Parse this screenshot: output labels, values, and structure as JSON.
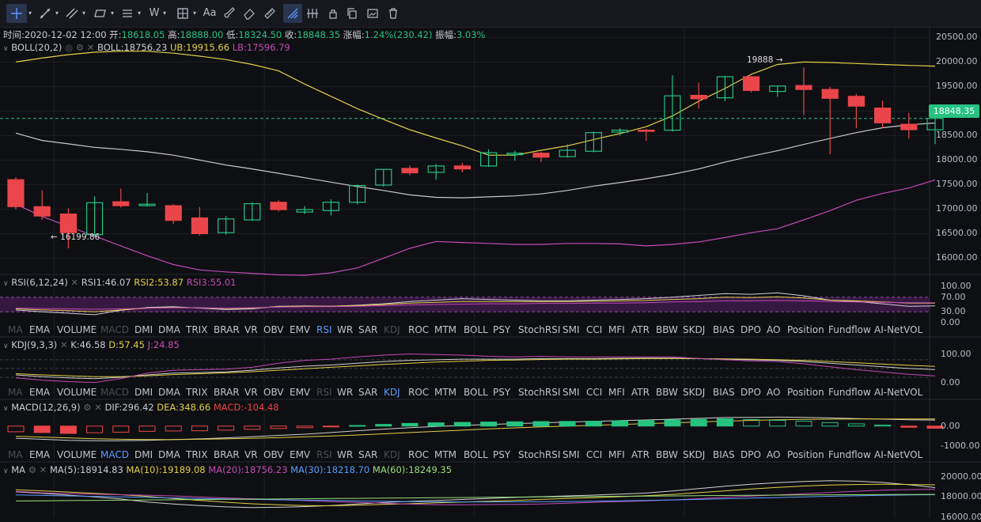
{
  "toolbar": {
    "icons": [
      "crosshair-icon",
      "trendline-icon",
      "multi-line-icon",
      "rectangle-icon",
      "horizontal-lines-icon",
      "pattern-w-icon",
      "measure-icon",
      "text-icon",
      "brush-icon",
      "eraser-icon",
      "ruler-icon",
      "magnet-icon",
      "grid-icon",
      "lock-icon",
      "copy-icon",
      "screenshot-icon",
      "trash-icon"
    ],
    "pattern_label": "W",
    "text_label": "Aa"
  },
  "info": {
    "time_label": "时间:",
    "time": "2020-12-02 12:00",
    "open_label": "开:",
    "open": "18618.05",
    "high_label": "高:",
    "high": "18888.00",
    "low_label": "低:",
    "low": "18324.50",
    "close_label": "收:",
    "close": "18848.35",
    "change_label": "涨幅:",
    "change": "1.24%(230.42)",
    "amp_label": "振幅:",
    "amp": "3.03%"
  },
  "boll": {
    "name": "BOLL(20,2)",
    "mid_label": "BOLL:",
    "mid": "18756.23",
    "ub_label": "UB:",
    "ub": "19915.66",
    "lb_label": "LB:",
    "lb": "17596.79"
  },
  "price_axis": [
    "20500.00",
    "20000.00",
    "19500.00",
    "19000.00",
    "18500.00",
    "18000.00",
    "17500.00",
    "17000.00",
    "16500.00",
    "16000.00"
  ],
  "last_price": "18848.35",
  "high_marker": "19888 →",
  "low_marker": "← 16199.86",
  "rsi": {
    "name": "RSI(6,12,24)",
    "v1_label": "RSI1:",
    "v1": "46.07",
    "v2_label": "RSI2:",
    "v2": "53.87",
    "v3_label": "RSI3:",
    "v3": "55.01",
    "axis": [
      "100.00",
      "70.00",
      "30.00",
      "0.00"
    ]
  },
  "kdj": {
    "name": "KDJ(9,3,3)",
    "k_label": "K:",
    "k": "46.58",
    "d_label": "D:",
    "d": "57.45",
    "j_label": "J:",
    "j": "24.85",
    "axis": [
      "100.00",
      "0.00"
    ]
  },
  "macd": {
    "name": "MACD(12,26,9)",
    "dif_label": "DIF:",
    "dif": "296.42",
    "dea_label": "DEA:",
    "dea": "348.66",
    "macd_label": "MACD:",
    "macd": "-104.48",
    "axis": [
      "0.00",
      "-1000.00"
    ]
  },
  "ma": {
    "name": "MA",
    "ma5_label": "MA(5):",
    "ma5": "18914.83",
    "ma10_label": "MA(10):",
    "ma10": "19189.08",
    "ma20_label": "MA(20):",
    "ma20": "18756.23",
    "ma30_label": "MA(30):",
    "ma30": "18218.70",
    "ma60_label": "MA(60):",
    "ma60": "18249.35",
    "axis": [
      "20000.00",
      "18000.00",
      "16000.00"
    ]
  },
  "indicator_tabs": [
    "MA",
    "EMA",
    "VOLUME",
    "MACD",
    "DMI",
    "DMA",
    "TRIX",
    "BRAR",
    "VR",
    "OBV",
    "EMV",
    "RSI",
    "WR",
    "SAR",
    "KDJ",
    "ROC",
    "MTM",
    "BOLL",
    "PSY",
    "StochRSI",
    "SMI",
    "CCI",
    "MFI",
    "ATR",
    "BBW",
    "SKDJ",
    "BIAS",
    "DPO",
    "AO",
    "Position",
    "Fundflow",
    "AI-NetVOL"
  ],
  "tab_rows": [
    {
      "active": "RSI",
      "disabled": [
        "MA",
        "MACD",
        "KDJ"
      ]
    },
    {
      "active": "KDJ",
      "disabled": [
        "MA",
        "MACD",
        "RSI"
      ]
    },
    {
      "active": "MACD",
      "disabled": [
        "MA",
        "RSI",
        "KDJ"
      ]
    }
  ],
  "colors": {
    "up": "#26c281",
    "down": "#e9454a",
    "boll_ub": "#e0d04a",
    "boll_mid": "#c8c8c8",
    "boll_lb": "#c24cb4",
    "accent": "#5b9bff",
    "rsi1": "#d0d0d0",
    "rsi2": "#e0d04a",
    "rsi3": "#c24cb4"
  },
  "chart_data": {
    "type": "candlestick",
    "candles": [
      {
        "o": 17600,
        "h": 17650,
        "c": 17050,
        "l": 17000
      },
      {
        "o": 17050,
        "h": 17380,
        "c": 16860,
        "l": 16780
      },
      {
        "o": 16900,
        "h": 17020,
        "c": 16520,
        "l": 16199.86
      },
      {
        "o": 16480,
        "h": 17260,
        "c": 17130,
        "l": 16460
      },
      {
        "o": 17150,
        "h": 17420,
        "c": 17070,
        "l": 17030
      },
      {
        "o": 17070,
        "h": 17330,
        "c": 17100,
        "l": 17050
      },
      {
        "o": 17070,
        "h": 17100,
        "c": 16770,
        "l": 16700
      },
      {
        "o": 16820,
        "h": 17040,
        "c": 16500,
        "l": 16460
      },
      {
        "o": 16520,
        "h": 16860,
        "c": 16800,
        "l": 16480
      },
      {
        "o": 16780,
        "h": 17140,
        "c": 17110,
        "l": 16760
      },
      {
        "o": 17140,
        "h": 17180,
        "c": 16990,
        "l": 16950
      },
      {
        "o": 16940,
        "h": 17060,
        "c": 16990,
        "l": 16900
      },
      {
        "o": 16970,
        "h": 17200,
        "c": 17140,
        "l": 16870
      },
      {
        "o": 17140,
        "h": 17500,
        "c": 17480,
        "l": 17100
      },
      {
        "o": 17490,
        "h": 17820,
        "c": 17810,
        "l": 17460
      },
      {
        "o": 17830,
        "h": 17890,
        "c": 17740,
        "l": 17690
      },
      {
        "o": 17750,
        "h": 17920,
        "c": 17880,
        "l": 17600
      },
      {
        "o": 17880,
        "h": 17940,
        "c": 17820,
        "l": 17750
      },
      {
        "o": 17880,
        "h": 18220,
        "c": 18150,
        "l": 17860
      },
      {
        "o": 18110,
        "h": 18190,
        "c": 18140,
        "l": 17990
      },
      {
        "o": 18140,
        "h": 18170,
        "c": 18060,
        "l": 17960
      },
      {
        "o": 18070,
        "h": 18320,
        "c": 18200,
        "l": 18050
      },
      {
        "o": 18180,
        "h": 18580,
        "c": 18560,
        "l": 18160
      },
      {
        "o": 18570,
        "h": 18650,
        "c": 18610,
        "l": 18500
      },
      {
        "o": 18610,
        "h": 18640,
        "c": 18590,
        "l": 18390
      },
      {
        "o": 18610,
        "h": 19730,
        "c": 19310,
        "l": 18580
      },
      {
        "o": 19320,
        "h": 19580,
        "c": 19250,
        "l": 19050
      },
      {
        "o": 19270,
        "h": 19720,
        "c": 19700,
        "l": 19200
      },
      {
        "o": 19700,
        "h": 19720,
        "c": 19420,
        "l": 19380
      },
      {
        "o": 19400,
        "h": 19520,
        "c": 19510,
        "l": 19290
      },
      {
        "o": 19520,
        "h": 19888,
        "c": 19440,
        "l": 18920
      },
      {
        "o": 19440,
        "h": 19490,
        "c": 19260,
        "l": 18120
      },
      {
        "o": 19300,
        "h": 19350,
        "c": 19100,
        "l": 18650
      },
      {
        "o": 19060,
        "h": 19210,
        "c": 18760,
        "l": 18650
      },
      {
        "o": 18730,
        "h": 18960,
        "c": 18620,
        "l": 18440
      },
      {
        "o": 18618.05,
        "h": 18888,
        "c": 18848.35,
        "l": 18324.5
      }
    ],
    "boll_ub": [
      20000,
      20080,
      20150,
      20200,
      20220,
      20220,
      20180,
      20120,
      20050,
      19950,
      19820,
      19550,
      19300,
      19050,
      18830,
      18620,
      18450,
      18290,
      18100,
      18100,
      18200,
      18290,
      18420,
      18540,
      18680,
      18900,
      19200,
      19460,
      19750,
      19950,
      20000,
      19990,
      19970,
      19950,
      19930,
      19915.66
    ],
    "boll_mid": [
      18550,
      18400,
      18330,
      18260,
      18220,
      18170,
      18100,
      18000,
      17900,
      17820,
      17730,
      17640,
      17550,
      17460,
      17380,
      17290,
      17240,
      17230,
      17250,
      17270,
      17310,
      17380,
      17470,
      17540,
      17620,
      17710,
      17820,
      17960,
      18080,
      18190,
      18320,
      18440,
      18560,
      18660,
      18720,
      18756.23
    ],
    "boll_lb": [
      17100,
      16850,
      16650,
      16450,
      16250,
      16050,
      15870,
      15760,
      15720,
      15690,
      15660,
      15650,
      15700,
      15800,
      16000,
      16200,
      16340,
      16320,
      16300,
      16280,
      16280,
      16300,
      16300,
      16290,
      16250,
      16280,
      16330,
      16420,
      16520,
      16600,
      16780,
      16970,
      17180,
      17320,
      17430,
      17596.79
    ],
    "rsi1": [
      35,
      30,
      26,
      22,
      34,
      42,
      44,
      40,
      36,
      38,
      45,
      46,
      45,
      48,
      52,
      58,
      62,
      66,
      64,
      62,
      60,
      60,
      62,
      64,
      66,
      70,
      75,
      80,
      78,
      82,
      74,
      62,
      58,
      52,
      45,
      46.07
    ],
    "rsi2": [
      38,
      35,
      33,
      30,
      35,
      40,
      42,
      41,
      39,
      40,
      44,
      45,
      45,
      47,
      50,
      54,
      56,
      58,
      58,
      58,
      58,
      58,
      59,
      60,
      61,
      64,
      66,
      70,
      69,
      71,
      68,
      62,
      60,
      57,
      54,
      53.87
    ],
    "rsi3": [
      40,
      39,
      38,
      37,
      38,
      40,
      41,
      41,
      40,
      41,
      43,
      44,
      44,
      45,
      47,
      49,
      50,
      51,
      52,
      52,
      53,
      53,
      54,
      54,
      55,
      57,
      58,
      60,
      60,
      61,
      60,
      58,
      57,
      56,
      55,
      55.01
    ],
    "kdj_k": [
      28,
      22,
      18,
      15,
      20,
      28,
      34,
      36,
      38,
      44,
      52,
      58,
      62,
      68,
      74,
      78,
      80,
      82,
      82,
      82,
      84,
      84,
      84,
      85,
      86,
      86,
      84,
      82,
      80,
      78,
      74,
      68,
      62,
      56,
      50,
      46.58
    ],
    "kdj_d": [
      32,
      28,
      25,
      22,
      22,
      25,
      29,
      32,
      35,
      39,
      44,
      49,
      54,
      59,
      64,
      68,
      72,
      75,
      78,
      79,
      81,
      82,
      82,
      83,
      84,
      84,
      84,
      83,
      82,
      80,
      78,
      74,
      70,
      65,
      61,
      57.45
    ],
    "kdj_j": [
      18,
      10,
      5,
      2,
      15,
      34,
      44,
      46,
      48,
      54,
      68,
      78,
      82,
      90,
      96,
      100,
      98,
      96,
      92,
      90,
      92,
      90,
      90,
      90,
      90,
      90,
      84,
      80,
      76,
      74,
      66,
      56,
      46,
      38,
      30,
      24.85
    ],
    "macd_hist": [
      -280,
      -320,
      -360,
      -330,
      -300,
      -260,
      -240,
      -230,
      -200,
      -160,
      -120,
      -80,
      -40,
      30,
      80,
      130,
      160,
      180,
      200,
      210,
      220,
      230,
      240,
      260,
      270,
      300,
      330,
      360,
      320,
      280,
      240,
      170,
      110,
      50,
      -60,
      -104.48
    ],
    "macd_dif": [
      -600,
      -650,
      -700,
      -720,
      -720,
      -700,
      -660,
      -630,
      -580,
      -520,
      -460,
      -400,
      -320,
      -230,
      -150,
      -80,
      -20,
      30,
      80,
      120,
      160,
      200,
      230,
      270,
      300,
      340,
      380,
      420,
      430,
      440,
      430,
      400,
      370,
      340,
      310,
      296.42
    ],
    "macd_dea": [
      -500,
      -540,
      -580,
      -620,
      -650,
      -660,
      -660,
      -650,
      -630,
      -600,
      -570,
      -530,
      -490,
      -440,
      -380,
      -320,
      -260,
      -200,
      -140,
      -90,
      -40,
      0,
      40,
      80,
      120,
      160,
      200,
      240,
      280,
      310,
      330,
      340,
      350,
      350,
      350,
      348.66
    ],
    "ma5": [
      18500,
      18350,
      18180,
      18000,
      17800,
      17500,
      17300,
      17150,
      17020,
      16950,
      16980,
      17050,
      17150,
      17300,
      17450,
      17560,
      17650,
      17750,
      17850,
      17950,
      18020,
      18100,
      18180,
      18280,
      18380,
      18580,
      18820,
      19050,
      19250,
      19400,
      19520,
      19600,
      19550,
      19420,
      19200,
      18914.83
    ],
    "ma10": [
      18700,
      18600,
      18480,
      18350,
      18220,
      18050,
      17850,
      17660,
      17480,
      17320,
      17220,
      17150,
      17130,
      17180,
      17260,
      17330,
      17420,
      17500,
      17580,
      17660,
      17760,
      17840,
      17930,
      18020,
      18120,
      18250,
      18420,
      18600,
      18780,
      18940,
      19070,
      19170,
      19220,
      19240,
      19220,
      19189.08
    ],
    "ma20": [
      18550,
      18400,
      18330,
      18260,
      18220,
      18170,
      18100,
      18000,
      17900,
      17820,
      17730,
      17640,
      17550,
      17460,
      17380,
      17290,
      17240,
      17230,
      17250,
      17270,
      17310,
      17380,
      17470,
      17540,
      17620,
      17710,
      17820,
      17960,
      18080,
      18190,
      18320,
      18440,
      18560,
      18660,
      18720,
      18756.23
    ],
    "ma30": [
      18200,
      18150,
      18100,
      18050,
      18000,
      17950,
      17900,
      17850,
      17800,
      17760,
      17720,
      17680,
      17640,
      17600,
      17570,
      17540,
      17520,
      17510,
      17510,
      17520,
      17530,
      17550,
      17580,
      17610,
      17650,
      17700,
      17760,
      17820,
      17880,
      17940,
      18000,
      18060,
      18110,
      18160,
      18190,
      18218.7
    ],
    "ma60": [
      17600,
      17620,
      17640,
      17660,
      17680,
      17700,
      17720,
      17740,
      17760,
      17780,
      17800,
      17820,
      17840,
      17860,
      17880,
      17900,
      17920,
      17940,
      17960,
      17980,
      18000,
      18020,
      18040,
      18060,
      18080,
      18100,
      18120,
      18140,
      18160,
      18180,
      18200,
      18210,
      18220,
      18230,
      18240,
      18249.35
    ],
    "ylim_price": [
      15700,
      20700
    ],
    "ylim_rsi": [
      0,
      100
    ],
    "ylim_kdj": [
      -10,
      115
    ],
    "ylim_macd": [
      -1100,
      650
    ],
    "ylim_ma": [
      16000,
      20200
    ]
  }
}
